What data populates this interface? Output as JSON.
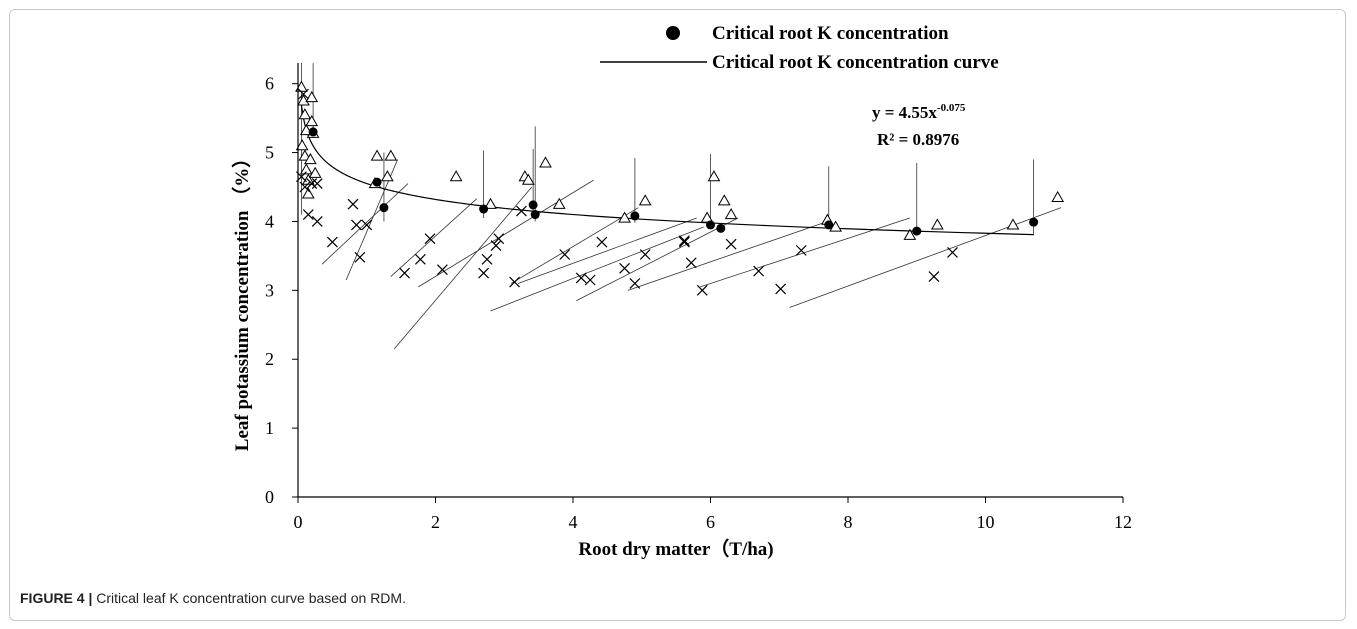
{
  "caption": {
    "label": "FIGURE 4 |",
    "text": "Critical leaf K concentration curve based on RDM."
  },
  "chart_data": {
    "type": "scatter",
    "xlabel": "Root dry matter（T/ha)",
    "ylabel": "Leaf  potassium concentration （%）",
    "xlim": [
      0,
      12
    ],
    "ylim": [
      0,
      6.3
    ],
    "xticks": [
      "0",
      "2",
      "4",
      "6",
      "8",
      "10",
      "12"
    ],
    "yticks": [
      "0",
      "1",
      "2",
      "3",
      "4",
      "5",
      "6"
    ],
    "grid": false,
    "legend_position": "top-right",
    "legend": [
      {
        "label": "Critical root K concentration",
        "marker": "filled-circle"
      },
      {
        "label": "Critical root K concentration curve",
        "marker": "line"
      }
    ],
    "annotation": {
      "equation_base": "y = 4.55x",
      "equation_exp": "-0.075",
      "r2": "R² = 0.8976"
    },
    "curve": {
      "a": 4.55,
      "b": -0.075,
      "x_range": [
        0.05,
        10.7
      ]
    },
    "critical_points": [
      {
        "x": 0.22,
        "y": 5.3
      },
      {
        "x": 1.15,
        "y": 4.57
      },
      {
        "x": 1.25,
        "y": 4.2
      },
      {
        "x": 2.7,
        "y": 4.18
      },
      {
        "x": 3.42,
        "y": 4.24
      },
      {
        "x": 3.45,
        "y": 4.1
      },
      {
        "x": 4.9,
        "y": 4.08
      },
      {
        "x": 6.0,
        "y": 3.95
      },
      {
        "x": 6.15,
        "y": 3.9
      },
      {
        "x": 7.72,
        "y": 3.95
      },
      {
        "x": 9.0,
        "y": 3.86
      },
      {
        "x": 10.7,
        "y": 3.99
      }
    ],
    "vertical_segments": [
      {
        "x": 0.22,
        "y0": 5.3,
        "y1": 6.3
      },
      {
        "x": 1.25,
        "y0": 4.0,
        "y1": 5.0
      },
      {
        "x": 2.7,
        "y0": 4.05,
        "y1": 5.03
      },
      {
        "x": 3.42,
        "y0": 4.1,
        "y1": 5.05
      },
      {
        "x": 3.45,
        "y0": 4.0,
        "y1": 5.38
      },
      {
        "x": 4.9,
        "y0": 3.98,
        "y1": 4.92
      },
      {
        "x": 6.0,
        "y0": 3.9,
        "y1": 4.98
      },
      {
        "x": 7.72,
        "y0": 3.9,
        "y1": 4.8
      },
      {
        "x": 9.0,
        "y0": 3.8,
        "y1": 4.85
      },
      {
        "x": 10.7,
        "y0": 3.8,
        "y1": 4.9
      },
      {
        "x": 0.05,
        "y0": 4.1,
        "y1": 6.3
      }
    ],
    "dilution_lines": [
      {
        "x1": 0.35,
        "y1": 3.38,
        "x2": 1.6,
        "y2": 4.55
      },
      {
        "x1": 0.7,
        "y1": 3.15,
        "x2": 1.45,
        "y2": 4.9
      },
      {
        "x1": 1.35,
        "y1": 3.2,
        "x2": 2.6,
        "y2": 4.33
      },
      {
        "x1": 1.4,
        "y1": 2.15,
        "x2": 3.4,
        "y2": 4.5
      },
      {
        "x1": 1.75,
        "y1": 3.05,
        "x2": 4.3,
        "y2": 4.6
      },
      {
        "x1": 3.1,
        "y1": 3.1,
        "x2": 4.95,
        "y2": 4.2
      },
      {
        "x1": 3.2,
        "y1": 3.1,
        "x2": 5.8,
        "y2": 4.05
      },
      {
        "x1": 2.8,
        "y1": 2.7,
        "x2": 5.9,
        "y2": 3.92
      },
      {
        "x1": 4.05,
        "y1": 2.85,
        "x2": 6.4,
        "y2": 4.05
      },
      {
        "x1": 4.8,
        "y1": 3.0,
        "x2": 7.7,
        "y2": 4.0
      },
      {
        "x1": 5.85,
        "y1": 3.05,
        "x2": 8.9,
        "y2": 4.05
      },
      {
        "x1": 7.15,
        "y1": 2.75,
        "x2": 11.1,
        "y2": 4.2
      }
    ],
    "triangles": [
      {
        "x": 0.05,
        "y": 5.95
      },
      {
        "x": 0.08,
        "y": 5.75
      },
      {
        "x": 0.1,
        "y": 5.55
      },
      {
        "x": 0.12,
        "y": 5.32
      },
      {
        "x": 0.06,
        "y": 5.1
      },
      {
        "x": 0.1,
        "y": 4.95
      },
      {
        "x": 0.12,
        "y": 4.75
      },
      {
        "x": 0.15,
        "y": 4.6
      },
      {
        "x": 0.18,
        "y": 4.9
      },
      {
        "x": 0.2,
        "y": 5.45
      },
      {
        "x": 0.22,
        "y": 5.28
      },
      {
        "x": 0.2,
        "y": 5.8
      },
      {
        "x": 0.15,
        "y": 4.4
      },
      {
        "x": 0.25,
        "y": 4.7
      },
      {
        "x": 1.15,
        "y": 4.95
      },
      {
        "x": 1.12,
        "y": 4.55
      },
      {
        "x": 1.3,
        "y": 4.65
      },
      {
        "x": 1.35,
        "y": 4.95
      },
      {
        "x": 2.3,
        "y": 4.65
      },
      {
        "x": 2.8,
        "y": 4.25
      },
      {
        "x": 3.3,
        "y": 4.65
      },
      {
        "x": 3.35,
        "y": 4.6
      },
      {
        "x": 3.6,
        "y": 4.85
      },
      {
        "x": 3.8,
        "y": 4.25
      },
      {
        "x": 4.75,
        "y": 4.05
      },
      {
        "x": 5.05,
        "y": 4.3
      },
      {
        "x": 5.95,
        "y": 4.05
      },
      {
        "x": 6.05,
        "y": 4.65
      },
      {
        "x": 6.2,
        "y": 4.3
      },
      {
        "x": 6.3,
        "y": 4.1
      },
      {
        "x": 7.7,
        "y": 4.02
      },
      {
        "x": 7.82,
        "y": 3.92
      },
      {
        "x": 8.9,
        "y": 3.8
      },
      {
        "x": 9.3,
        "y": 3.95
      },
      {
        "x": 10.4,
        "y": 3.95
      },
      {
        "x": 11.05,
        "y": 4.35
      }
    ],
    "crosses": [
      {
        "x": 0.08,
        "y": 5.85
      },
      {
        "x": 0.05,
        "y": 4.65
      },
      {
        "x": 0.1,
        "y": 4.5
      },
      {
        "x": 0.2,
        "y": 4.55
      },
      {
        "x": 0.15,
        "y": 4.1
      },
      {
        "x": 0.28,
        "y": 4.0
      },
      {
        "x": 0.28,
        "y": 4.55
      },
      {
        "x": 0.5,
        "y": 3.7
      },
      {
        "x": 0.8,
        "y": 4.25
      },
      {
        "x": 0.85,
        "y": 3.95
      },
      {
        "x": 0.9,
        "y": 3.48
      },
      {
        "x": 1.0,
        "y": 3.95
      },
      {
        "x": 1.55,
        "y": 3.25
      },
      {
        "x": 1.78,
        "y": 3.45
      },
      {
        "x": 1.92,
        "y": 3.75
      },
      {
        "x": 2.1,
        "y": 3.3
      },
      {
        "x": 2.7,
        "y": 3.25
      },
      {
        "x": 2.75,
        "y": 3.45
      },
      {
        "x": 2.88,
        "y": 3.65
      },
      {
        "x": 2.92,
        "y": 3.75
      },
      {
        "x": 3.15,
        "y": 3.12
      },
      {
        "x": 3.25,
        "y": 4.15
      },
      {
        "x": 3.88,
        "y": 3.52
      },
      {
        "x": 4.12,
        "y": 3.18
      },
      {
        "x": 4.25,
        "y": 3.15
      },
      {
        "x": 4.42,
        "y": 3.7
      },
      {
        "x": 4.75,
        "y": 3.32
      },
      {
        "x": 4.9,
        "y": 3.1
      },
      {
        "x": 5.05,
        "y": 3.52
      },
      {
        "x": 5.62,
        "y": 3.72
      },
      {
        "x": 5.62,
        "y": 3.7
      },
      {
        "x": 5.72,
        "y": 3.4
      },
      {
        "x": 5.88,
        "y": 3.0
      },
      {
        "x": 6.3,
        "y": 3.67
      },
      {
        "x": 6.7,
        "y": 3.28
      },
      {
        "x": 7.02,
        "y": 3.02
      },
      {
        "x": 7.32,
        "y": 3.58
      },
      {
        "x": 9.25,
        "y": 3.2
      },
      {
        "x": 9.52,
        "y": 3.55
      }
    ]
  }
}
